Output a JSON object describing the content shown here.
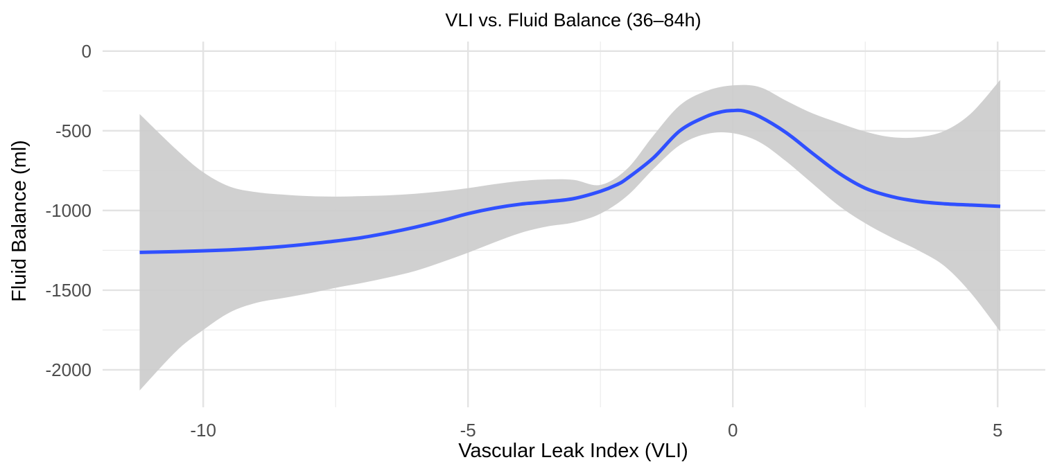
{
  "chart_data": {
    "type": "line",
    "title": "VLI vs. Fluid Balance (36–84h)",
    "xlabel": "Vascular Leak Index (VLI)",
    "ylabel": "Fluid Balance (ml)",
    "xlim": [
      -11.9,
      5.9
    ],
    "ylim": [
      -2235,
      60
    ],
    "x_ticks": [
      -10,
      -5,
      0,
      5
    ],
    "x_tick_labels": [
      "-10",
      "-5",
      "0",
      "5"
    ],
    "x_minor_ticks": [
      -7.5,
      -2.5,
      2.5
    ],
    "y_ticks": [
      0,
      -500,
      -1000,
      -1500,
      -2000
    ],
    "y_tick_labels": [
      "0",
      "-500",
      "-1000",
      "-1500",
      "-2000"
    ],
    "y_minor_ticks": [
      -250,
      -750,
      -1250,
      -1750
    ],
    "grid": true,
    "series": [
      {
        "name": "smooth fit",
        "color": "#3050FF",
        "x": [
          -11.2,
          -10.5,
          -10,
          -9.5,
          -9,
          -8.5,
          -8,
          -7.5,
          -7,
          -6.5,
          -6,
          -5.5,
          -5,
          -4.5,
          -4,
          -3.5,
          -3,
          -2.5,
          -2.2,
          -2,
          -1.5,
          -1,
          -0.5,
          -0.2,
          0,
          0.2,
          0.5,
          1,
          1.5,
          2,
          2.5,
          3,
          3.5,
          4,
          4.5,
          5.05
        ],
        "y": [
          -1263,
          -1258,
          -1253,
          -1247,
          -1238,
          -1226,
          -1210,
          -1192,
          -1170,
          -1140,
          -1105,
          -1065,
          -1020,
          -985,
          -960,
          -945,
          -925,
          -880,
          -840,
          -800,
          -670,
          -500,
          -410,
          -380,
          -373,
          -375,
          -410,
          -510,
          -640,
          -765,
          -860,
          -913,
          -943,
          -958,
          -966,
          -974
        ]
      },
      {
        "name": "confidence band upper",
        "color": "#CCCCCC",
        "x": [
          -11.2,
          -10.5,
          -10,
          -9.5,
          -9,
          -8.5,
          -8,
          -7.5,
          -7,
          -6.5,
          -6,
          -5.5,
          -5,
          -4.5,
          -4,
          -3.5,
          -3,
          -2.5,
          -2,
          -1.5,
          -1,
          -0.5,
          0,
          0.5,
          1,
          1.5,
          2,
          2.5,
          3,
          3.5,
          4,
          4.5,
          5.05
        ],
        "y": [
          -395,
          -620,
          -760,
          -850,
          -885,
          -900,
          -910,
          -913,
          -910,
          -905,
          -895,
          -880,
          -860,
          -835,
          -815,
          -805,
          -808,
          -840,
          -740,
          -530,
          -340,
          -250,
          -215,
          -225,
          -310,
          -390,
          -450,
          -505,
          -540,
          -540,
          -500,
          -390,
          -180
        ]
      },
      {
        "name": "confidence band lower",
        "color": "#CCCCCC",
        "x": [
          -11.2,
          -10.5,
          -10,
          -9.5,
          -9,
          -8.5,
          -8,
          -7.5,
          -7,
          -6.5,
          -6,
          -5.5,
          -5,
          -4.5,
          -4,
          -3.5,
          -3,
          -2.5,
          -2,
          -1.5,
          -1,
          -0.5,
          0,
          0.5,
          1,
          1.5,
          2,
          2.5,
          3,
          3.5,
          4,
          4.5,
          5.05
        ],
        "y": [
          -2130,
          -1880,
          -1750,
          -1640,
          -1580,
          -1550,
          -1520,
          -1485,
          -1455,
          -1420,
          -1380,
          -1325,
          -1265,
          -1200,
          -1140,
          -1100,
          -1075,
          -1020,
          -910,
          -740,
          -590,
          -520,
          -515,
          -570,
          -690,
          -830,
          -970,
          -1080,
          -1170,
          -1250,
          -1350,
          -1520,
          -1760
        ]
      }
    ]
  }
}
